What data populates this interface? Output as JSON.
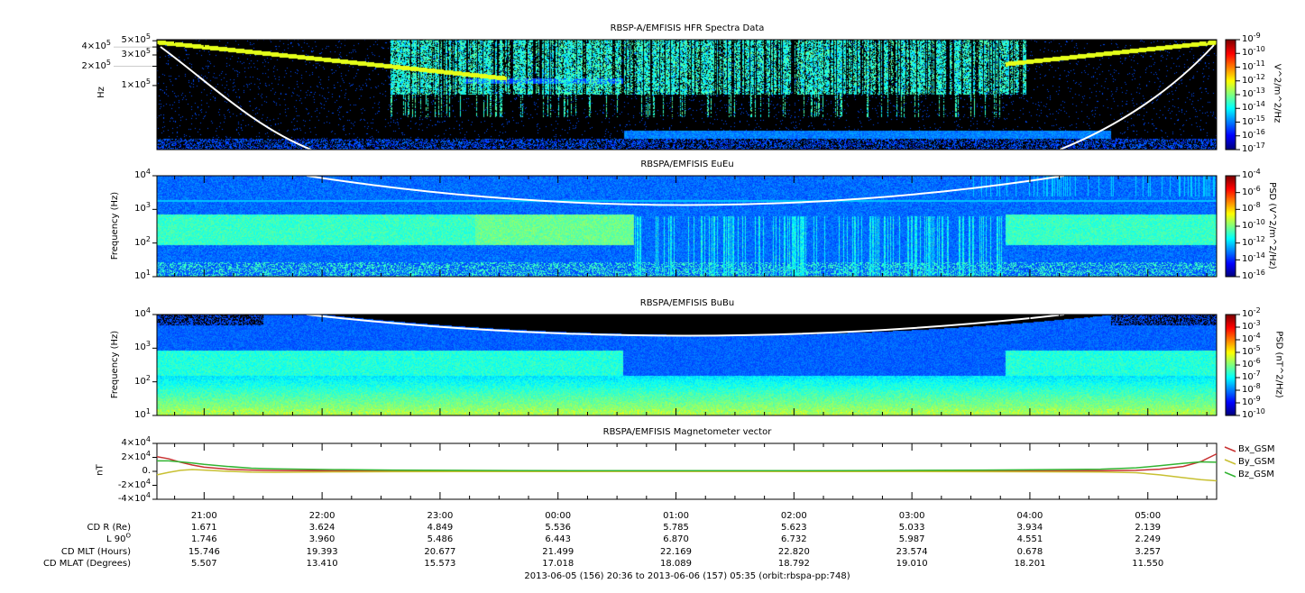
{
  "chart_data": [
    {
      "type": "heatmap",
      "title": "RBSP-A/EMFISIS  HFR Spectra Data",
      "ylabel": "Hz",
      "yscale": "log",
      "ylim": [
        10000,
        520000
      ],
      "yticks": [
        {
          "base": "5×10",
          "exp": "5",
          "v": 500000
        },
        {
          "base": "4×10",
          "exp": "5",
          "v": 400000
        },
        {
          "base": "3×10",
          "exp": "5",
          "v": 300000
        },
        {
          "base": "2×10",
          "exp": "5",
          "v": 200000
        },
        {
          "base": "1×10",
          "exp": "5",
          "v": 100000
        }
      ],
      "colorbar": {
        "label": "V^2/m^2/Hz",
        "ticks": [
          "-9",
          "-10",
          "-11",
          "-12",
          "-13",
          "-14",
          "-15",
          "-16",
          "-17"
        ],
        "range_exp": [
          -17,
          -9
        ]
      },
      "white_curve": "cyclotron / upper-hybrid trace"
    },
    {
      "type": "heatmap",
      "title": "RBSPA/EMFISIS  EuEu",
      "ylabel": "Frequency (Hz)",
      "yscale": "log",
      "ylim": [
        10,
        10000
      ],
      "yticks": [
        {
          "base": "10",
          "exp": "4",
          "v": 10000
        },
        {
          "base": "10",
          "exp": "3",
          "v": 1000
        },
        {
          "base": "10",
          "exp": "2",
          "v": 100
        },
        {
          "base": "10",
          "exp": "1",
          "v": 10
        }
      ],
      "colorbar": {
        "label": "PSD (V^2/m^2/Hz)",
        "ticks": [
          "-4",
          "-6",
          "-8",
          "-10",
          "-12",
          "-14",
          "-16"
        ],
        "range_exp": [
          -16,
          -4
        ]
      }
    },
    {
      "type": "heatmap",
      "title": "RBSPA/EMFISIS  BuBu",
      "ylabel": "Frequency (Hz)",
      "yscale": "log",
      "ylim": [
        10,
        10000
      ],
      "yticks": [
        {
          "base": "10",
          "exp": "4",
          "v": 10000
        },
        {
          "base": "10",
          "exp": "3",
          "v": 1000
        },
        {
          "base": "10",
          "exp": "2",
          "v": 100
        },
        {
          "base": "10",
          "exp": "1",
          "v": 10
        }
      ],
      "colorbar": {
        "label": "PSD (nT^2/Hz)",
        "ticks": [
          "-2",
          "-3",
          "-4",
          "-5",
          "-6",
          "-7",
          "-8",
          "-9",
          "-10"
        ],
        "range_exp": [
          -10,
          -2
        ]
      }
    },
    {
      "type": "line",
      "title": "RBSPA/EMFISIS  Magnetometer vector",
      "ylabel": "nT",
      "ylim": [
        -40000,
        40000
      ],
      "yticks": [
        {
          "base": "4×10",
          "exp": "4",
          "v": 40000
        },
        {
          "base": "2×10",
          "exp": "4",
          "v": 20000
        },
        {
          "base": "0.",
          "exp": "",
          "v": 0
        },
        {
          "base": "-2×10",
          "exp": "4",
          "v": -20000
        },
        {
          "base": "-4×10",
          "exp": "4",
          "v": -40000
        }
      ],
      "x_hours_since_start": [
        0,
        0.1,
        0.2,
        0.3,
        0.4,
        0.6,
        0.8,
        1.0,
        1.5,
        2.0,
        3.0,
        4.0,
        5.0,
        6.0,
        7.0,
        8.0,
        8.3,
        8.5,
        8.7,
        8.85,
        8.983
      ],
      "series": [
        {
          "name": "Bx_GSM",
          "color": "#c83232",
          "values": [
            21000,
            18000,
            13000,
            9000,
            6000,
            3000,
            1800,
            1200,
            800,
            500,
            300,
            200,
            200,
            300,
            500,
            800,
            1500,
            3000,
            7000,
            14000,
            25000
          ]
        },
        {
          "name": "By_GSM",
          "color": "#c8c032",
          "values": [
            -5000,
            -1500,
            1500,
            2500,
            1800,
            0,
            -1200,
            -1500,
            -800,
            -500,
            -300,
            -200,
            -200,
            -300,
            -500,
            -1000,
            -2000,
            -5000,
            -9000,
            -12000,
            -13500
          ]
        },
        {
          "name": "Bz_GSM",
          "color": "#32b432",
          "values": [
            15000,
            15000,
            13500,
            12000,
            10000,
            7000,
            4500,
            3500,
            2500,
            1800,
            1200,
            900,
            900,
            1200,
            1800,
            3000,
            5000,
            8000,
            11500,
            13500,
            13000
          ]
        }
      ]
    }
  ],
  "time_axis": {
    "start": "20:36",
    "end": "05:35",
    "span_hours": 8.983,
    "first_major_offset_hours": 0.4,
    "labels": [
      "21:00",
      "22:00",
      "23:00",
      "00:00",
      "01:00",
      "02:00",
      "03:00",
      "04:00",
      "05:00"
    ]
  },
  "ephemeris": {
    "rows": [
      {
        "label": "CD R (Re)",
        "values": [
          "1.671",
          "3.624",
          "4.849",
          "5.536",
          "5.785",
          "5.623",
          "5.033",
          "3.934",
          "2.139"
        ]
      },
      {
        "label": "L 90",
        "sup": "O",
        "values": [
          "1.746",
          "3.960",
          "5.486",
          "6.443",
          "6.870",
          "6.732",
          "5.987",
          "4.551",
          "2.249"
        ]
      },
      {
        "label": "CD MLT (Hours)",
        "values": [
          "15.746",
          "19.393",
          "20.677",
          "21.499",
          "22.169",
          "22.820",
          "23.574",
          "0.678",
          "3.257"
        ]
      },
      {
        "label": "CD MLAT (Degrees)",
        "values": [
          "5.507",
          "13.410",
          "15.573",
          "17.018",
          "18.089",
          "18.792",
          "19.010",
          "18.201",
          "11.550"
        ]
      }
    ]
  },
  "footer": "2013-06-05 (156) 20:36 to 2013-06-06 (157) 05:35 (orbit:rbspa-pp:748)"
}
